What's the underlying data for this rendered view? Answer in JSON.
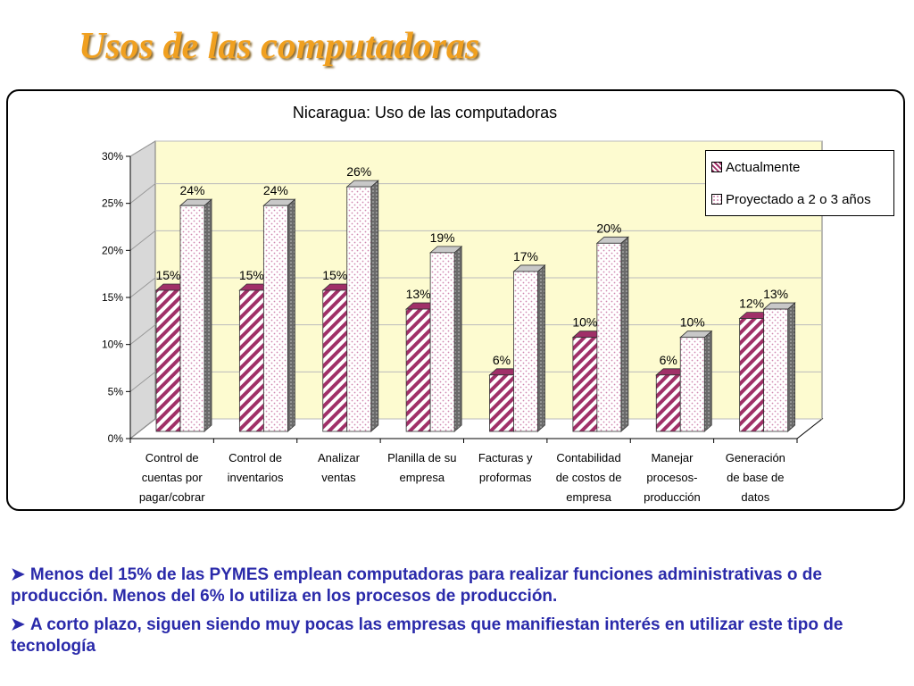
{
  "slide": {
    "title": "Usos de las computadoras",
    "bullets": [
      "Menos del 15% de las PYMES emplean computadoras para realizar funciones administrativas o de producción. Menos del 6% lo utiliza en los procesos de producción.",
      "A corto plazo, siguen siendo muy pocas las empresas que manifiestan interés en utilizar este tipo de tecnología"
    ],
    "bullet_icon": "arrowhead-bullet-icon"
  },
  "colors": {
    "title": "#f0a020",
    "bullet_text": "#2a2aaa",
    "series_current": "#a03068",
    "series_projected": "#d088b0",
    "plot_wall": "#fdfbd0"
  },
  "chart_data": {
    "type": "bar",
    "title": "Nicaragua: Uso de las computadoras",
    "categories": [
      [
        "Control de",
        "cuentas por",
        "pagar/cobrar"
      ],
      [
        "Control de",
        "inventarios"
      ],
      [
        "Analizar",
        "ventas"
      ],
      [
        "Planilla de su",
        "empresa"
      ],
      [
        "Facturas y",
        "proformas"
      ],
      [
        "Contabilidad",
        "de costos de",
        "empresa"
      ],
      [
        "Manejar",
        "procesos-",
        "producción"
      ],
      [
        "Generación",
        "de base de",
        "datos"
      ]
    ],
    "series": [
      {
        "name": "Actualmente",
        "values": [
          15,
          15,
          15,
          13,
          6,
          10,
          6,
          12
        ],
        "labels": [
          "15%",
          "15%",
          "15%",
          "13%",
          "6%",
          "10%",
          "6%",
          "12%"
        ]
      },
      {
        "name": "Proyectado a 2 o 3 años",
        "values": [
          24,
          24,
          26,
          19,
          17,
          20,
          10,
          13
        ],
        "labels": [
          "24%",
          "24%",
          "26%",
          "19%",
          "17%",
          "20%",
          "10%",
          "13%"
        ]
      }
    ],
    "yticks": [
      "0%",
      "5%",
      "10%",
      "15%",
      "20%",
      "25%",
      "30%"
    ],
    "ylim": [
      0,
      30
    ],
    "grid": true,
    "legend_position": "top-right",
    "style": "3d-clustered-column"
  }
}
